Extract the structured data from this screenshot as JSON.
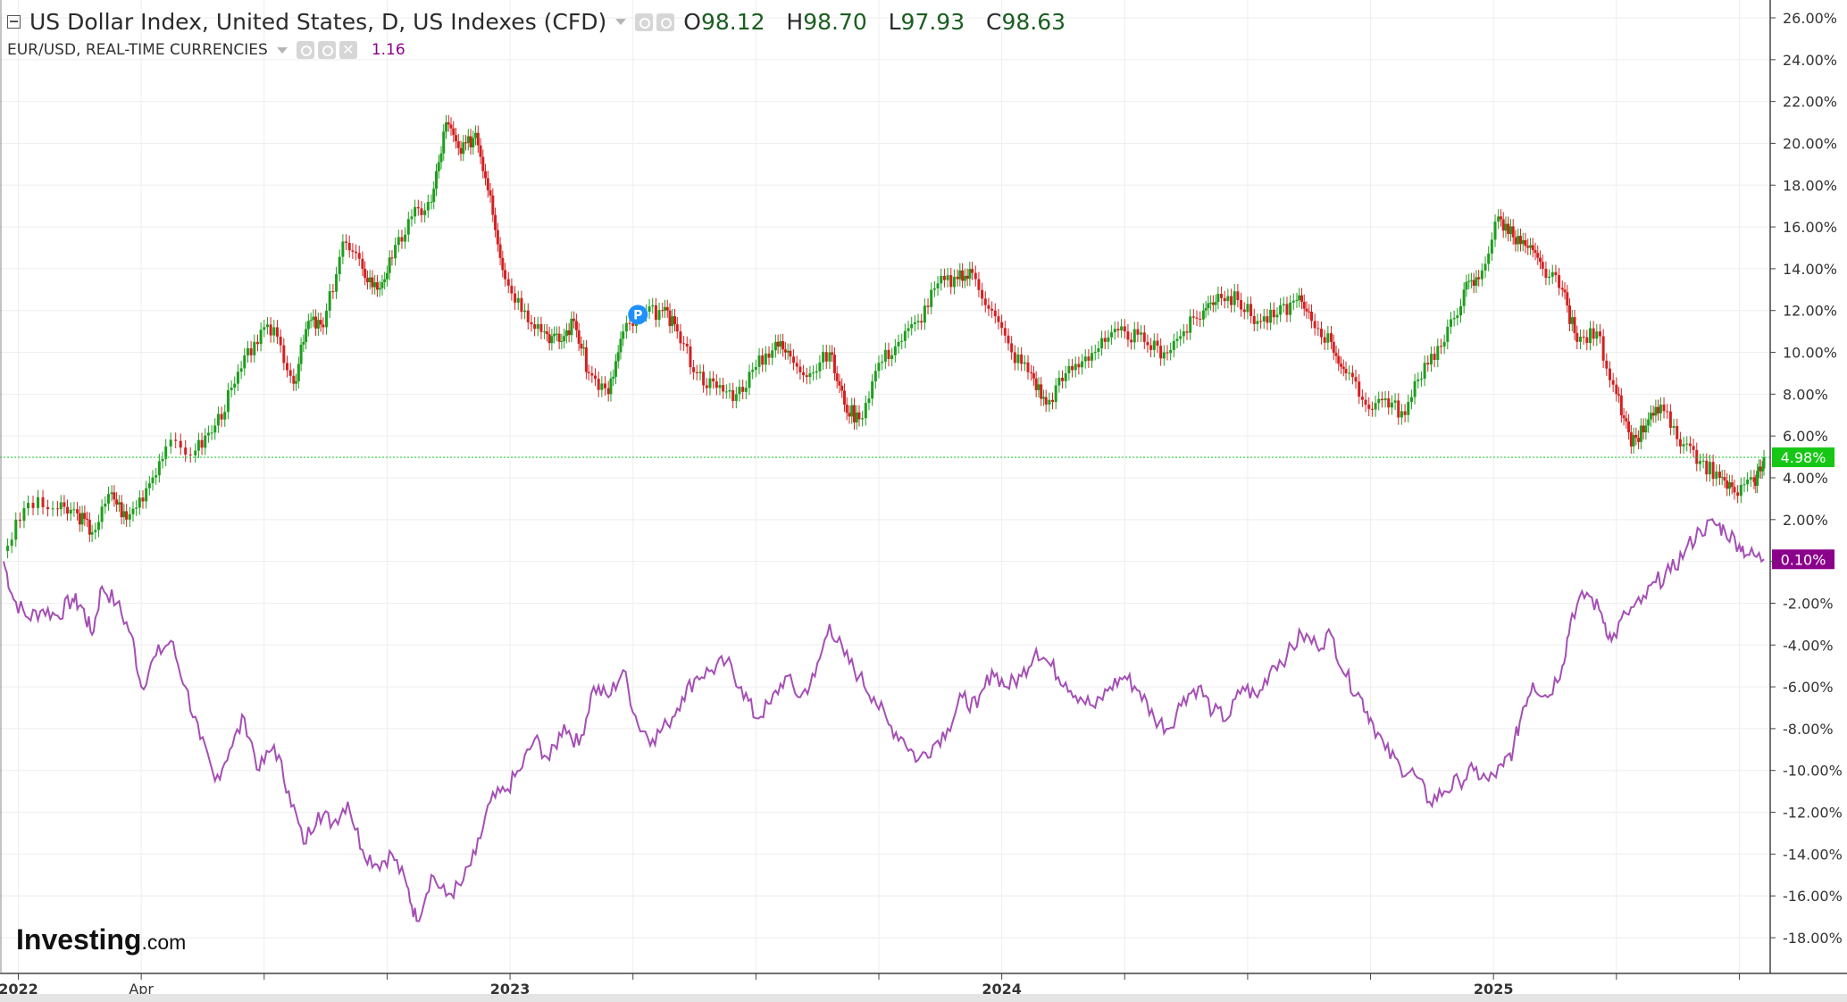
{
  "legend": {
    "main_title": "US Dollar Index, United States, D, US Indexes (CFD)",
    "ohlc": {
      "o_label": "O",
      "o": "98.12",
      "h_label": "H",
      "h": "98.70",
      "l_label": "L",
      "l": "97.93",
      "c_label": "C",
      "c": "98.63"
    },
    "compare_title": "EUR/USD, REAL-TIME CURRENCIES",
    "compare_value": "1.16"
  },
  "logo": {
    "brand": "Investing",
    "suffix": ".com"
  },
  "marker": {
    "label": "P"
  },
  "chart_data": {
    "type": "line",
    "title": "US Dollar Index, United States, D, US Indexes (CFD)",
    "xlabel": "",
    "ylabel": "",
    "x_ticks": [
      "2022",
      "Apr",
      "2023",
      "2024",
      "2025"
    ],
    "x_ticks_bold": [
      "2022",
      "2023",
      "2024",
      "2025"
    ],
    "ylim": [
      -19,
      27
    ],
    "y_ticks": [
      26,
      24,
      22,
      20,
      18,
      16,
      14,
      12,
      10,
      8,
      6,
      4,
      2,
      0,
      -2,
      -4,
      -6,
      -8,
      -10,
      -12,
      -14,
      -16,
      -18
    ],
    "y_tick_labels": [
      "26.00%",
      "24.00%",
      "22.00%",
      "20.00%",
      "18.00%",
      "16.00%",
      "14.00%",
      "12.00%",
      "10.00%",
      "8.00%",
      "6.00%",
      "4.00%",
      "2.00%",
      "",
      "-2.00%",
      "-4.00%",
      "-6.00%",
      "-8.00%",
      "-10.00%",
      "-12.00%",
      "-14.00%",
      "-16.00%",
      "-18.00%"
    ],
    "grid": true,
    "x_range": [
      2021.97,
      2025.72
    ],
    "x_tick_positions": [
      2022.0,
      2022.25,
      2023.0,
      2024.0,
      2025.0
    ],
    "current_line": 4.98,
    "series": [
      {
        "name": "US Dollar Index, United States, D, US Indexes (CFD)",
        "style": "candlestick",
        "up_color": "#1e9e1e",
        "down_color": "#d32020",
        "last_label": "4.98%",
        "label_color": "#16c716",
        "points": [
          {
            "x": 2021.97,
            "y": 0.5
          },
          {
            "x": 2022.02,
            "y": 2.8
          },
          {
            "x": 2022.08,
            "y": 2.5
          },
          {
            "x": 2022.12,
            "y": 2.3
          },
          {
            "x": 2022.15,
            "y": 1.4
          },
          {
            "x": 2022.19,
            "y": 3.3
          },
          {
            "x": 2022.22,
            "y": 2.0
          },
          {
            "x": 2022.26,
            "y": 3.5
          },
          {
            "x": 2022.3,
            "y": 5.5
          },
          {
            "x": 2022.36,
            "y": 5.3
          },
          {
            "x": 2022.4,
            "y": 6.5
          },
          {
            "x": 2022.44,
            "y": 8.5
          },
          {
            "x": 2022.48,
            "y": 10.5
          },
          {
            "x": 2022.52,
            "y": 11.2
          },
          {
            "x": 2022.56,
            "y": 8.5
          },
          {
            "x": 2022.59,
            "y": 11.5
          },
          {
            "x": 2022.62,
            "y": 11.2
          },
          {
            "x": 2022.66,
            "y": 15.3
          },
          {
            "x": 2022.7,
            "y": 14.0
          },
          {
            "x": 2022.73,
            "y": 13.0
          },
          {
            "x": 2022.76,
            "y": 14.5
          },
          {
            "x": 2022.8,
            "y": 16.5
          },
          {
            "x": 2022.84,
            "y": 17.2
          },
          {
            "x": 2022.87,
            "y": 21.0
          },
          {
            "x": 2022.9,
            "y": 19.5
          },
          {
            "x": 2022.93,
            "y": 20.5
          },
          {
            "x": 2022.96,
            "y": 17.5
          },
          {
            "x": 2022.99,
            "y": 13.5
          },
          {
            "x": 2023.03,
            "y": 12.0
          },
          {
            "x": 2023.07,
            "y": 11.0
          },
          {
            "x": 2023.1,
            "y": 10.5
          },
          {
            "x": 2023.13,
            "y": 11.5
          },
          {
            "x": 2023.16,
            "y": 9.0
          },
          {
            "x": 2023.2,
            "y": 8.0
          },
          {
            "x": 2023.23,
            "y": 11.0
          },
          {
            "x": 2023.27,
            "y": 11.8
          },
          {
            "x": 2023.31,
            "y": 12.0
          },
          {
            "x": 2023.34,
            "y": 11.0
          },
          {
            "x": 2023.38,
            "y": 9.0
          },
          {
            "x": 2023.42,
            "y": 8.3
          },
          {
            "x": 2023.46,
            "y": 8.0
          },
          {
            "x": 2023.5,
            "y": 9.3
          },
          {
            "x": 2023.54,
            "y": 10.5
          },
          {
            "x": 2023.57,
            "y": 9.8
          },
          {
            "x": 2023.61,
            "y": 9.0
          },
          {
            "x": 2023.65,
            "y": 10.0
          },
          {
            "x": 2023.68,
            "y": 7.5
          },
          {
            "x": 2023.71,
            "y": 6.8
          },
          {
            "x": 2023.75,
            "y": 9.5
          },
          {
            "x": 2023.79,
            "y": 10.5
          },
          {
            "x": 2023.83,
            "y": 11.5
          },
          {
            "x": 2023.87,
            "y": 13.3
          },
          {
            "x": 2023.91,
            "y": 13.5
          },
          {
            "x": 2023.94,
            "y": 13.8
          },
          {
            "x": 2023.98,
            "y": 12.0
          },
          {
            "x": 2024.02,
            "y": 10.0
          },
          {
            "x": 2024.06,
            "y": 9.0
          },
          {
            "x": 2024.09,
            "y": 7.5
          },
          {
            "x": 2024.13,
            "y": 9.0
          },
          {
            "x": 2024.17,
            "y": 9.8
          },
          {
            "x": 2024.21,
            "y": 10.5
          },
          {
            "x": 2024.25,
            "y": 11.0
          },
          {
            "x": 2024.29,
            "y": 10.5
          },
          {
            "x": 2024.33,
            "y": 10.0
          },
          {
            "x": 2024.37,
            "y": 11.0
          },
          {
            "x": 2024.41,
            "y": 12.0
          },
          {
            "x": 2024.44,
            "y": 12.8
          },
          {
            "x": 2024.48,
            "y": 12.5
          },
          {
            "x": 2024.52,
            "y": 11.5
          },
          {
            "x": 2024.56,
            "y": 11.8
          },
          {
            "x": 2024.6,
            "y": 12.5
          },
          {
            "x": 2024.63,
            "y": 11.5
          },
          {
            "x": 2024.67,
            "y": 10.5
          },
          {
            "x": 2024.7,
            "y": 9.0
          },
          {
            "x": 2024.74,
            "y": 7.5
          },
          {
            "x": 2024.78,
            "y": 7.8
          },
          {
            "x": 2024.82,
            "y": 7.0
          },
          {
            "x": 2024.86,
            "y": 9.5
          },
          {
            "x": 2024.9,
            "y": 10.5
          },
          {
            "x": 2024.94,
            "y": 13.0
          },
          {
            "x": 2024.97,
            "y": 13.5
          },
          {
            "x": 2025.01,
            "y": 16.5
          },
          {
            "x": 2025.04,
            "y": 15.5
          },
          {
            "x": 2025.07,
            "y": 15.0
          },
          {
            "x": 2025.1,
            "y": 14.0
          },
          {
            "x": 2025.14,
            "y": 13.0
          },
          {
            "x": 2025.17,
            "y": 10.5
          },
          {
            "x": 2025.21,
            "y": 11.0
          },
          {
            "x": 2025.25,
            "y": 8.0
          },
          {
            "x": 2025.28,
            "y": 5.5
          },
          {
            "x": 2025.31,
            "y": 6.5
          },
          {
            "x": 2025.34,
            "y": 7.5
          },
          {
            "x": 2025.38,
            "y": 5.5
          },
          {
            "x": 2025.42,
            "y": 4.8
          },
          {
            "x": 2025.46,
            "y": 4.0
          },
          {
            "x": 2025.49,
            "y": 3.3
          },
          {
            "x": 2025.53,
            "y": 3.8
          },
          {
            "x": 2025.55,
            "y": 4.98
          }
        ]
      },
      {
        "name": "EUR/USD, REAL-TIME CURRENCIES",
        "style": "line",
        "color": "#a54fb5",
        "last_label": "0.10%",
        "label_color": "#8b008b",
        "points": [
          {
            "x": 2021.97,
            "y": 0.0
          },
          {
            "x": 2021.99,
            "y": -1.8
          },
          {
            "x": 2022.02,
            "y": -2.7
          },
          {
            "x": 2022.05,
            "y": -2.3
          },
          {
            "x": 2022.08,
            "y": -2.6
          },
          {
            "x": 2022.11,
            "y": -1.8
          },
          {
            "x": 2022.13,
            "y": -2.2
          },
          {
            "x": 2022.15,
            "y": -3.5
          },
          {
            "x": 2022.17,
            "y": -1.2
          },
          {
            "x": 2022.2,
            "y": -2.0
          },
          {
            "x": 2022.23,
            "y": -3.5
          },
          {
            "x": 2022.25,
            "y": -6.0
          },
          {
            "x": 2022.28,
            "y": -4.5
          },
          {
            "x": 2022.31,
            "y": -3.8
          },
          {
            "x": 2022.34,
            "y": -6.0
          },
          {
            "x": 2022.37,
            "y": -8.5
          },
          {
            "x": 2022.4,
            "y": -10.5
          },
          {
            "x": 2022.43,
            "y": -9.0
          },
          {
            "x": 2022.46,
            "y": -7.5
          },
          {
            "x": 2022.49,
            "y": -10.0
          },
          {
            "x": 2022.52,
            "y": -8.8
          },
          {
            "x": 2022.55,
            "y": -11.0
          },
          {
            "x": 2022.58,
            "y": -13.5
          },
          {
            "x": 2022.61,
            "y": -12.0
          },
          {
            "x": 2022.64,
            "y": -12.5
          },
          {
            "x": 2022.67,
            "y": -11.5
          },
          {
            "x": 2022.7,
            "y": -13.8
          },
          {
            "x": 2022.73,
            "y": -14.5
          },
          {
            "x": 2022.76,
            "y": -14.0
          },
          {
            "x": 2022.79,
            "y": -15.5
          },
          {
            "x": 2022.81,
            "y": -17.2
          },
          {
            "x": 2022.84,
            "y": -15.0
          },
          {
            "x": 2022.87,
            "y": -16.0
          },
          {
            "x": 2022.9,
            "y": -15.5
          },
          {
            "x": 2022.93,
            "y": -14.0
          },
          {
            "x": 2022.96,
            "y": -11.5
          },
          {
            "x": 2022.99,
            "y": -11.0
          },
          {
            "x": 2023.02,
            "y": -10.0
          },
          {
            "x": 2023.05,
            "y": -8.5
          },
          {
            "x": 2023.08,
            "y": -9.5
          },
          {
            "x": 2023.11,
            "y": -7.8
          },
          {
            "x": 2023.14,
            "y": -8.8
          },
          {
            "x": 2023.17,
            "y": -6.0
          },
          {
            "x": 2023.2,
            "y": -6.5
          },
          {
            "x": 2023.23,
            "y": -5.2
          },
          {
            "x": 2023.26,
            "y": -7.8
          },
          {
            "x": 2023.29,
            "y": -8.5
          },
          {
            "x": 2023.32,
            "y": -7.8
          },
          {
            "x": 2023.35,
            "y": -6.5
          },
          {
            "x": 2023.38,
            "y": -5.5
          },
          {
            "x": 2023.41,
            "y": -5.2
          },
          {
            "x": 2023.44,
            "y": -4.8
          },
          {
            "x": 2023.47,
            "y": -6.0
          },
          {
            "x": 2023.5,
            "y": -7.5
          },
          {
            "x": 2023.53,
            "y": -6.8
          },
          {
            "x": 2023.56,
            "y": -5.5
          },
          {
            "x": 2023.59,
            "y": -6.5
          },
          {
            "x": 2023.62,
            "y": -5.5
          },
          {
            "x": 2023.65,
            "y": -3.0
          },
          {
            "x": 2023.68,
            "y": -4.5
          },
          {
            "x": 2023.71,
            "y": -5.5
          },
          {
            "x": 2023.74,
            "y": -6.5
          },
          {
            "x": 2023.77,
            "y": -7.8
          },
          {
            "x": 2023.8,
            "y": -8.5
          },
          {
            "x": 2023.83,
            "y": -9.5
          },
          {
            "x": 2023.86,
            "y": -8.8
          },
          {
            "x": 2023.89,
            "y": -8.0
          },
          {
            "x": 2023.92,
            "y": -6.5
          },
          {
            "x": 2023.95,
            "y": -7.0
          },
          {
            "x": 2023.98,
            "y": -5.2
          },
          {
            "x": 2024.01,
            "y": -6.0
          },
          {
            "x": 2024.04,
            "y": -5.5
          },
          {
            "x": 2024.07,
            "y": -4.2
          },
          {
            "x": 2024.1,
            "y": -5.0
          },
          {
            "x": 2024.13,
            "y": -5.8
          },
          {
            "x": 2024.16,
            "y": -6.5
          },
          {
            "x": 2024.19,
            "y": -7.0
          },
          {
            "x": 2024.22,
            "y": -6.0
          },
          {
            "x": 2024.25,
            "y": -5.5
          },
          {
            "x": 2024.28,
            "y": -6.2
          },
          {
            "x": 2024.31,
            "y": -7.5
          },
          {
            "x": 2024.34,
            "y": -8.0
          },
          {
            "x": 2024.37,
            "y": -6.5
          },
          {
            "x": 2024.4,
            "y": -6.0
          },
          {
            "x": 2024.43,
            "y": -7.2
          },
          {
            "x": 2024.46,
            "y": -7.5
          },
          {
            "x": 2024.49,
            "y": -6.0
          },
          {
            "x": 2024.52,
            "y": -6.5
          },
          {
            "x": 2024.55,
            "y": -5.0
          },
          {
            "x": 2024.58,
            "y": -4.5
          },
          {
            "x": 2024.61,
            "y": -3.5
          },
          {
            "x": 2024.64,
            "y": -4.0
          },
          {
            "x": 2024.67,
            "y": -3.5
          },
          {
            "x": 2024.7,
            "y": -5.5
          },
          {
            "x": 2024.73,
            "y": -6.5
          },
          {
            "x": 2024.75,
            "y": -7.5
          },
          {
            "x": 2024.78,
            "y": -9.0
          },
          {
            "x": 2024.81,
            "y": -9.8
          },
          {
            "x": 2024.84,
            "y": -10.2
          },
          {
            "x": 2024.87,
            "y": -11.5
          },
          {
            "x": 2024.9,
            "y": -11.0
          },
          {
            "x": 2024.93,
            "y": -10.5
          },
          {
            "x": 2024.96,
            "y": -10.0
          },
          {
            "x": 2024.99,
            "y": -10.5
          },
          {
            "x": 2025.02,
            "y": -9.8
          },
          {
            "x": 2025.04,
            "y": -9.0
          },
          {
            "x": 2025.06,
            "y": -7.0
          },
          {
            "x": 2025.08,
            "y": -5.8
          },
          {
            "x": 2025.11,
            "y": -6.5
          },
          {
            "x": 2025.14,
            "y": -5.0
          },
          {
            "x": 2025.16,
            "y": -2.5
          },
          {
            "x": 2025.19,
            "y": -1.5
          },
          {
            "x": 2025.22,
            "y": -2.5
          },
          {
            "x": 2025.24,
            "y": -3.8
          },
          {
            "x": 2025.27,
            "y": -2.5
          },
          {
            "x": 2025.3,
            "y": -2.0
          },
          {
            "x": 2025.33,
            "y": -1.0
          },
          {
            "x": 2025.36,
            "y": -0.5
          },
          {
            "x": 2025.39,
            "y": 0.5
          },
          {
            "x": 2025.42,
            "y": 1.5
          },
          {
            "x": 2025.45,
            "y": 1.8
          },
          {
            "x": 2025.47,
            "y": 1.5
          },
          {
            "x": 2025.5,
            "y": 0.8
          },
          {
            "x": 2025.52,
            "y": 0.3
          },
          {
            "x": 2025.55,
            "y": 0.1
          }
        ]
      }
    ]
  },
  "colors": {
    "grid": "#eeeeee",
    "axis": "#444444",
    "current_line": "#2ecc40",
    "marker": "#1e90ff"
  }
}
